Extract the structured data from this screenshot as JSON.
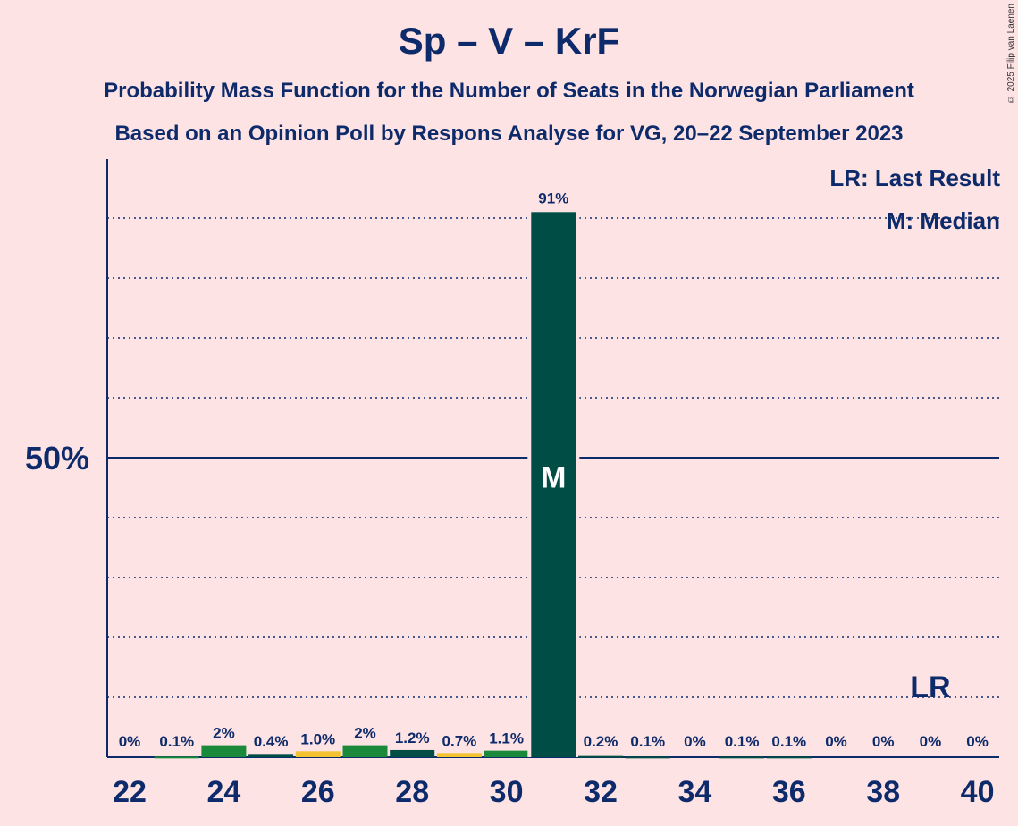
{
  "title": "Sp – V – KrF",
  "subtitle_1": "Probability Mass Function for the Number of Seats in the Norwegian Parliament",
  "subtitle_2": "Based on an Opinion Poll by Respons Analyse for VG, 20–22 September 2023",
  "copyright": "© 2025 Filip van Laenen",
  "legend": {
    "last_result": "LR: Last Result",
    "median": "M: Median"
  },
  "colors": {
    "background": "#fde3e3",
    "text": "#0d2a6b",
    "green": "#1a8a3a",
    "dark_teal": "#004d45",
    "yellow": "#f2c230"
  },
  "chart_data": {
    "type": "bar",
    "x": [
      22,
      23,
      24,
      25,
      26,
      27,
      28,
      29,
      30,
      31,
      32,
      33,
      34,
      35,
      36,
      37,
      38,
      39,
      40
    ],
    "values": [
      0,
      0.1,
      2,
      0.4,
      1.0,
      2,
      1.2,
      0.7,
      1.1,
      91,
      0.2,
      0.1,
      0,
      0.1,
      0.1,
      0,
      0,
      0,
      0
    ],
    "labels": [
      "0%",
      "0.1%",
      "2%",
      "0.4%",
      "1.0%",
      "2%",
      "1.2%",
      "0.7%",
      "1.1%",
      "91%",
      "0.2%",
      "0.1%",
      "0%",
      "0.1%",
      "0.1%",
      "0%",
      "0%",
      "0%",
      "0%"
    ],
    "bar_colors": [
      "green",
      "green",
      "green",
      "dark_teal",
      "yellow",
      "green",
      "dark_teal",
      "yellow",
      "green",
      "dark_teal",
      "dark_teal",
      "dark_teal",
      "dark_teal",
      "dark_teal",
      "dark_teal",
      "dark_teal",
      "dark_teal",
      "dark_teal",
      "dark_teal"
    ],
    "x_tick_labels": [
      "22",
      "24",
      "26",
      "28",
      "30",
      "32",
      "34",
      "36",
      "38",
      "40"
    ],
    "y_tick_label": "50%",
    "ylim": [
      0,
      100
    ],
    "gridlines": [
      10,
      20,
      30,
      40,
      60,
      70,
      80,
      90
    ],
    "median_seat": 31,
    "median_label": "M",
    "last_result_seat": 39,
    "last_result_label": "LR"
  }
}
